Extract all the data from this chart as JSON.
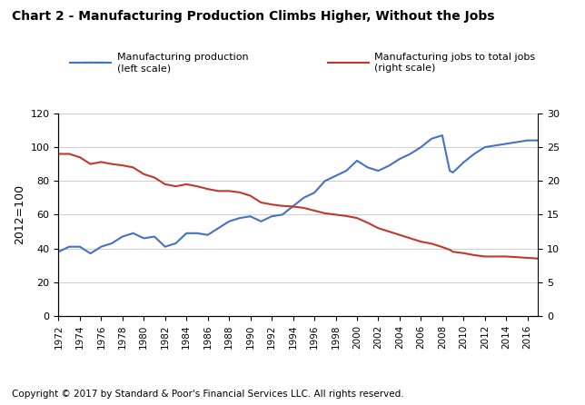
{
  "title": "Chart 2 - Manufacturing Production Climbs Higher, Without the Jobs",
  "ylabel_left": "2012=100",
  "copyright": "Copyright © 2017 by Standard & Poor's Financial Services LLC. All rights reserved.",
  "legend1": "Manufacturing production\n(left scale)",
  "legend2": "Manufacturing jobs to total jobs\n(right scale)",
  "line1_color": "#4472C4",
  "line2_color": "#C0392B",
  "ylim_left": [
    0,
    120
  ],
  "ylim_right": [
    0,
    30
  ],
  "yticks_left": [
    0,
    20,
    40,
    60,
    80,
    100,
    120
  ],
  "yticks_right": [
    0,
    5,
    10,
    15,
    20,
    25,
    30
  ],
  "years": [
    1972,
    1973,
    1974,
    1975,
    1976,
    1977,
    1978,
    1979,
    1980,
    1981,
    1982,
    1983,
    1984,
    1985,
    1986,
    1987,
    1988,
    1989,
    1990,
    1991,
    1992,
    1993,
    1994,
    1995,
    1996,
    1997,
    1998,
    1999,
    2000,
    2001,
    2002,
    2003,
    2004,
    2005,
    2006,
    2007,
    2008,
    2008.7,
    2009,
    2010,
    2011,
    2012,
    2013,
    2014,
    2015,
    2016,
    2017
  ],
  "manuf_production": [
    38,
    41,
    41,
    37,
    41,
    43,
    47,
    49,
    46,
    47,
    41,
    43,
    49,
    49,
    48,
    52,
    56,
    58,
    59,
    56,
    59,
    60,
    65,
    70,
    73,
    80,
    83,
    86,
    92,
    88,
    86,
    89,
    93,
    96,
    100,
    105,
    107,
    86,
    85,
    91,
    96,
    100,
    101,
    102,
    103,
    104,
    104
  ],
  "manuf_jobs_pct": [
    24.0,
    24.0,
    23.5,
    22.5,
    22.8,
    22.5,
    22.3,
    22.0,
    21.0,
    20.5,
    19.5,
    19.2,
    19.5,
    19.2,
    18.8,
    18.5,
    18.5,
    18.3,
    17.8,
    16.8,
    16.5,
    16.3,
    16.2,
    16.0,
    15.6,
    15.2,
    15.0,
    14.8,
    14.5,
    13.8,
    13.0,
    12.5,
    12.0,
    11.5,
    11.0,
    10.7,
    10.2,
    9.8,
    9.5,
    9.3,
    9.0,
    8.8,
    8.8,
    8.8,
    8.7,
    8.6,
    8.5
  ],
  "background_color": "#ffffff",
  "grid_color": "#bbbbbb"
}
